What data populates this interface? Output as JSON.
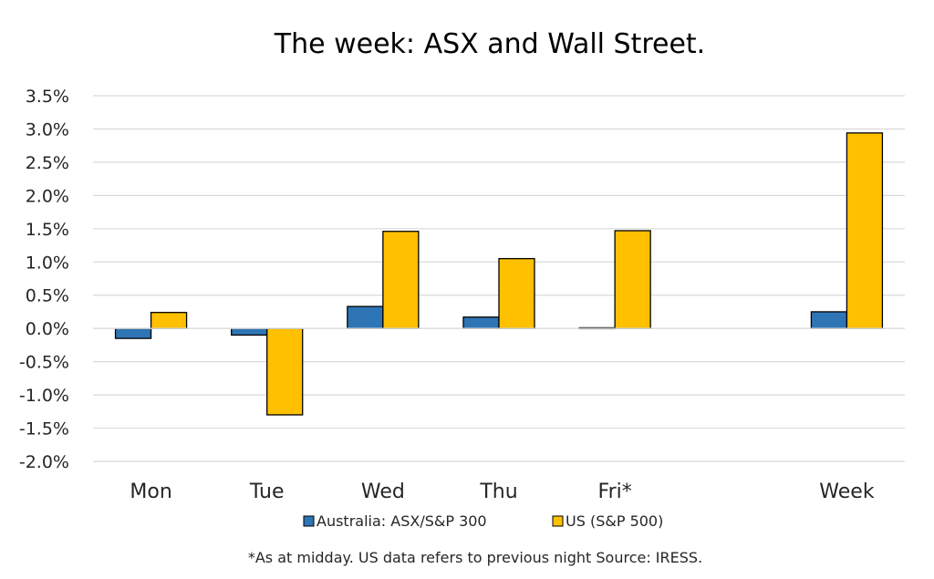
{
  "chart_data": {
    "type": "bar",
    "title": "The week:  ASX and Wall Street.",
    "categories": [
      "Mon",
      "Tue",
      "Wed",
      "Thu",
      "Fri*",
      "",
      "Week"
    ],
    "series": [
      {
        "name": "Australia: ASX/S&P 300",
        "color": "#2E75B6",
        "values": [
          -0.15,
          -0.1,
          0.33,
          0.17,
          0.01,
          null,
          0.25
        ]
      },
      {
        "name": "US (S&P 500)",
        "color": "#FFC000",
        "values": [
          0.24,
          -1.3,
          1.46,
          1.05,
          1.47,
          null,
          2.94
        ]
      }
    ],
    "ylim": [
      -2.0,
      3.5
    ],
    "yticks": [
      3.5,
      3.0,
      2.5,
      2.0,
      1.5,
      1.0,
      0.5,
      0.0,
      -0.5,
      -1.0,
      -1.5,
      -2.0
    ],
    "ytick_format": "percent_1dp",
    "grid": true,
    "legend_position": "bottom",
    "footnote": "*As at midday. US data refers to previous night  Source:  IRESS."
  }
}
